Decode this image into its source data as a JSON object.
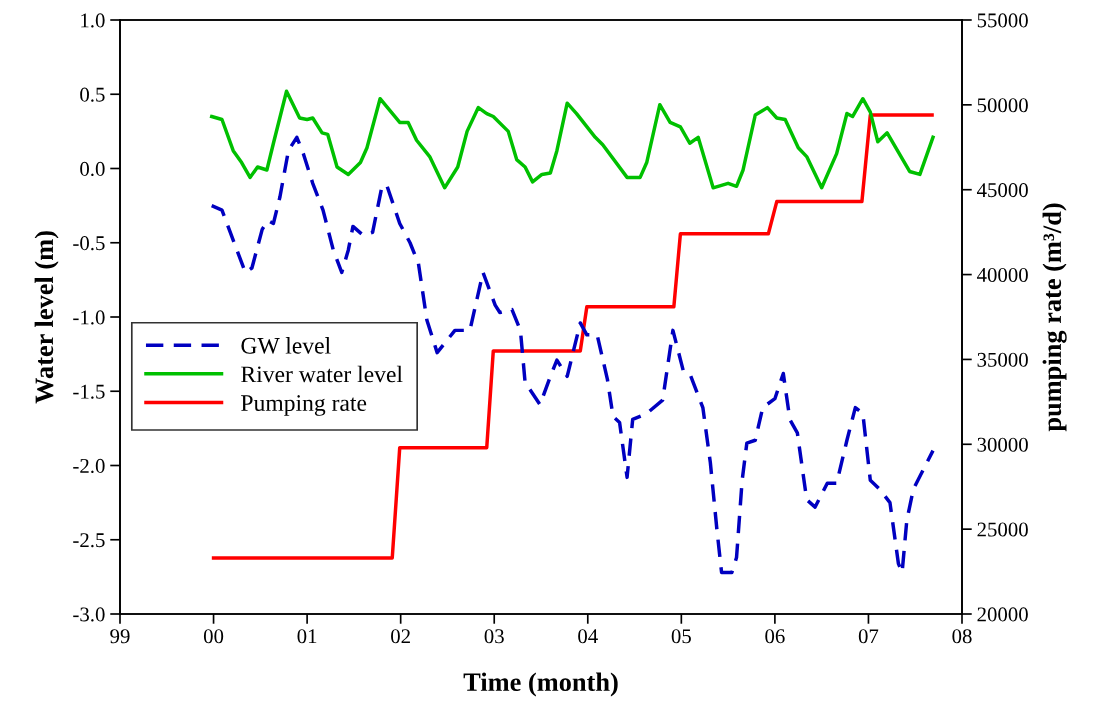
{
  "chart_data": {
    "type": "line",
    "xlabel": "Time (month)",
    "ylabel": "Water level (m)",
    "y2label": "pumping rate (m³/d)",
    "xlim": [
      1999,
      2008
    ],
    "xticks": [
      {
        "value": 1999,
        "label": "99"
      },
      {
        "value": 2000,
        "label": "00"
      },
      {
        "value": 2001,
        "label": "01"
      },
      {
        "value": 2002,
        "label": "02"
      },
      {
        "value": 2003,
        "label": "03"
      },
      {
        "value": 2004,
        "label": "04"
      },
      {
        "value": 2005,
        "label": "05"
      },
      {
        "value": 2006,
        "label": "06"
      },
      {
        "value": 2007,
        "label": "07"
      },
      {
        "value": 2008,
        "label": "08"
      }
    ],
    "ylim": [
      -3,
      1
    ],
    "yticks": [
      {
        "value": -3,
        "label": "-3.0"
      },
      {
        "value": -2.5,
        "label": "-2.5"
      },
      {
        "value": -2,
        "label": "-2.0"
      },
      {
        "value": -1.5,
        "label": "-1.5"
      },
      {
        "value": -1,
        "label": "-1.0"
      },
      {
        "value": -0.5,
        "label": "-0.5"
      },
      {
        "value": 0,
        "label": "0.0"
      },
      {
        "value": 0.5,
        "label": "0.5"
      },
      {
        "value": 1,
        "label": "1.0"
      }
    ],
    "y2lim": [
      20000,
      55000
    ],
    "y2ticks": [
      20000,
      25000,
      30000,
      35000,
      40000,
      45000,
      50000,
      55000
    ],
    "legend": "left",
    "grid": false,
    "series": [
      {
        "name": "GW level",
        "color": "#0000c0",
        "line_style": "dashed",
        "x": [
          1999.98,
          2000.09,
          2000.25,
          2000.34,
          2000.41,
          2000.52,
          2000.58,
          2000.64,
          2000.71,
          2000.8,
          2000.89,
          2000.96,
          2001.06,
          2001.17,
          2001.28,
          2001.37,
          2001.44,
          2001.49,
          2001.6,
          2001.7,
          2001.8,
          2001.85,
          2001.99,
          2002.1,
          2002.19,
          2002.28,
          2002.39,
          2002.58,
          2002.74,
          2002.88,
          2003.01,
          2003.06,
          2003.19,
          2003.28,
          2003.33,
          2003.49,
          2003.6,
          2003.67,
          2003.78,
          2003.92,
          2003.99,
          2004.1,
          2004.21,
          2004.27,
          2004.34,
          2004.42,
          2004.48,
          2004.63,
          2004.8,
          2004.91,
          2005.02,
          2005.09,
          2005.23,
          2005.31,
          2005.38,
          2005.43,
          2005.54,
          2005.59,
          2005.65,
          2005.7,
          2005.79,
          2005.87,
          2006.0,
          2006.09,
          2006.16,
          2006.24,
          2006.34,
          2006.43,
          2006.56,
          2006.66,
          2006.77,
          2006.86,
          2006.94,
          2007.02,
          2007.12,
          2007.23,
          2007.32,
          2007.36,
          2007.41,
          2007.48,
          2007.69
        ],
        "values": [
          -0.25,
          -0.28,
          -0.55,
          -0.7,
          -0.67,
          -0.41,
          -0.35,
          -0.37,
          -0.19,
          0.12,
          0.21,
          0.1,
          -0.1,
          -0.28,
          -0.55,
          -0.7,
          -0.55,
          -0.39,
          -0.45,
          -0.43,
          -0.12,
          -0.11,
          -0.37,
          -0.5,
          -0.64,
          -1.02,
          -1.24,
          -1.09,
          -1.09,
          -0.7,
          -0.92,
          -0.97,
          -0.95,
          -1.09,
          -1.44,
          -1.59,
          -1.4,
          -1.29,
          -1.4,
          -1.04,
          -1.12,
          -1.12,
          -1.42,
          -1.67,
          -1.71,
          -2.08,
          -1.69,
          -1.65,
          -1.56,
          -1.09,
          -1.36,
          -1.38,
          -1.61,
          -1.98,
          -2.43,
          -2.72,
          -2.72,
          -2.62,
          -2.1,
          -1.85,
          -1.83,
          -1.61,
          -1.55,
          -1.38,
          -1.69,
          -1.78,
          -2.23,
          -2.28,
          -2.12,
          -2.12,
          -1.83,
          -1.61,
          -1.65,
          -2.1,
          -2.16,
          -2.25,
          -2.66,
          -2.72,
          -2.37,
          -2.16,
          -1.9
        ]
      },
      {
        "name": "River water level",
        "color": "#00c000",
        "line_style": "solid",
        "x": [
          1999.98,
          2000.09,
          2000.21,
          2000.3,
          2000.39,
          2000.47,
          2000.57,
          2000.64,
          2000.78,
          2000.92,
          2001.0,
          2001.06,
          2001.16,
          2001.22,
          2001.32,
          2001.44,
          2001.57,
          2001.64,
          2001.78,
          2001.99,
          2002.08,
          2002.17,
          2002.31,
          2002.47,
          2002.61,
          2002.71,
          2002.83,
          2002.92,
          2002.99,
          2003.15,
          2003.24,
          2003.33,
          2003.41,
          2003.51,
          2003.6,
          2003.67,
          2003.78,
          2003.88,
          2004.08,
          2004.16,
          2004.42,
          2004.56,
          2004.63,
          2004.77,
          2004.88,
          2004.99,
          2005.09,
          2005.18,
          2005.34,
          2005.5,
          2005.59,
          2005.66,
          2005.79,
          2005.92,
          2006.02,
          2006.11,
          2006.25,
          2006.34,
          2006.5,
          2006.66,
          2006.77,
          2006.83,
          2006.94,
          2007.02,
          2007.1,
          2007.2,
          2007.44,
          2007.55,
          2007.69
        ],
        "values": [
          0.35,
          0.33,
          0.12,
          0.04,
          -0.06,
          0.01,
          -0.01,
          0.17,
          0.52,
          0.34,
          0.33,
          0.34,
          0.24,
          0.23,
          0.01,
          -0.04,
          0.04,
          0.14,
          0.47,
          0.31,
          0.31,
          0.19,
          0.08,
          -0.13,
          0.01,
          0.25,
          0.41,
          0.37,
          0.35,
          0.25,
          0.06,
          0.01,
          -0.09,
          -0.04,
          -0.03,
          0.12,
          0.44,
          0.37,
          0.21,
          0.16,
          -0.06,
          -0.06,
          0.04,
          0.43,
          0.31,
          0.28,
          0.17,
          0.21,
          -0.13,
          -0.1,
          -0.12,
          -0.01,
          0.36,
          0.41,
          0.34,
          0.33,
          0.14,
          0.08,
          -0.13,
          0.1,
          0.37,
          0.35,
          0.47,
          0.38,
          0.18,
          0.24,
          -0.02,
          -0.04,
          0.21
        ]
      },
      {
        "name": "Pumping rate",
        "color": "#ff0000",
        "line_style": "solid",
        "axis": "y2",
        "x": [
          2000.0,
          2001.91,
          2001.99,
          2002.92,
          2002.99,
          2003.92,
          2003.99,
          2004.92,
          2004.99,
          2005.93,
          2006.02,
          2006.93,
          2007.02,
          2007.68
        ],
        "values": [
          23300,
          23300,
          29800,
          29800,
          35500,
          35500,
          38100,
          38100,
          42400,
          42400,
          44300,
          44300,
          49400,
          49400
        ]
      }
    ]
  }
}
